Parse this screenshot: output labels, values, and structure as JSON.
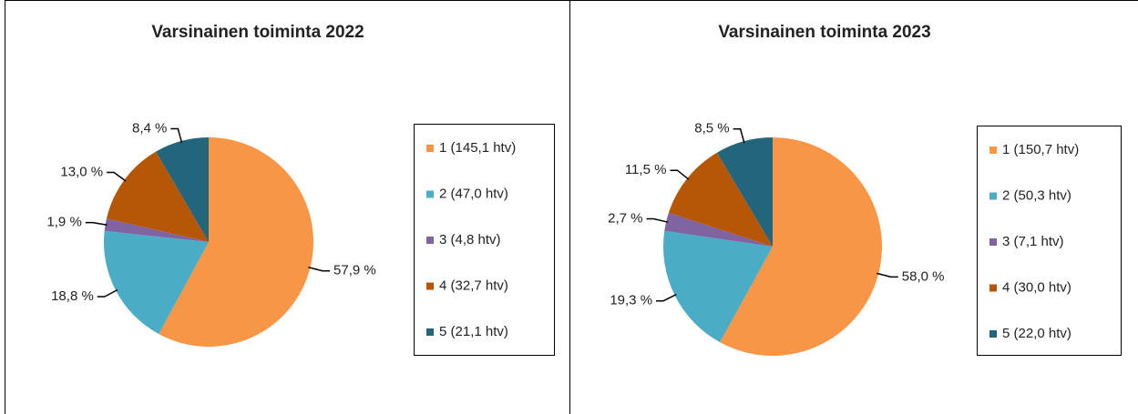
{
  "chart_data": [
    {
      "type": "pie",
      "title": "Varsinainen toiminta 2022",
      "categories": [
        "1 (145,1 htv)",
        "2 (47,0 htv)",
        "3 (4,8 htv)",
        "4 (32,7 htv)",
        "5 (21,1 htv)"
      ],
      "values": [
        57.9,
        18.8,
        1.9,
        13.0,
        8.4
      ],
      "value_labels": [
        "57,9 %",
        "18,8 %",
        "1,9 %",
        "13,0 %",
        "8,4 %"
      ],
      "colors": [
        "#f79646",
        "#4bacc6",
        "#8064a2",
        "#b65708",
        "#23657a"
      ]
    },
    {
      "type": "pie",
      "title": "Varsinainen toiminta 2023",
      "categories": [
        "1 (150,7 htv)",
        "2 (50,3 htv)",
        "3 (7,1 htv)",
        "4 (30,0 htv)",
        "5 (22,0 htv)"
      ],
      "values": [
        58.0,
        19.3,
        2.7,
        11.5,
        8.5
      ],
      "value_labels": [
        "58,0 %",
        "19,3 %",
        "2,7 %",
        "11,5 %",
        "8,5 %"
      ],
      "colors": [
        "#f79646",
        "#4bacc6",
        "#8064a2",
        "#b65708",
        "#23657a"
      ]
    }
  ]
}
